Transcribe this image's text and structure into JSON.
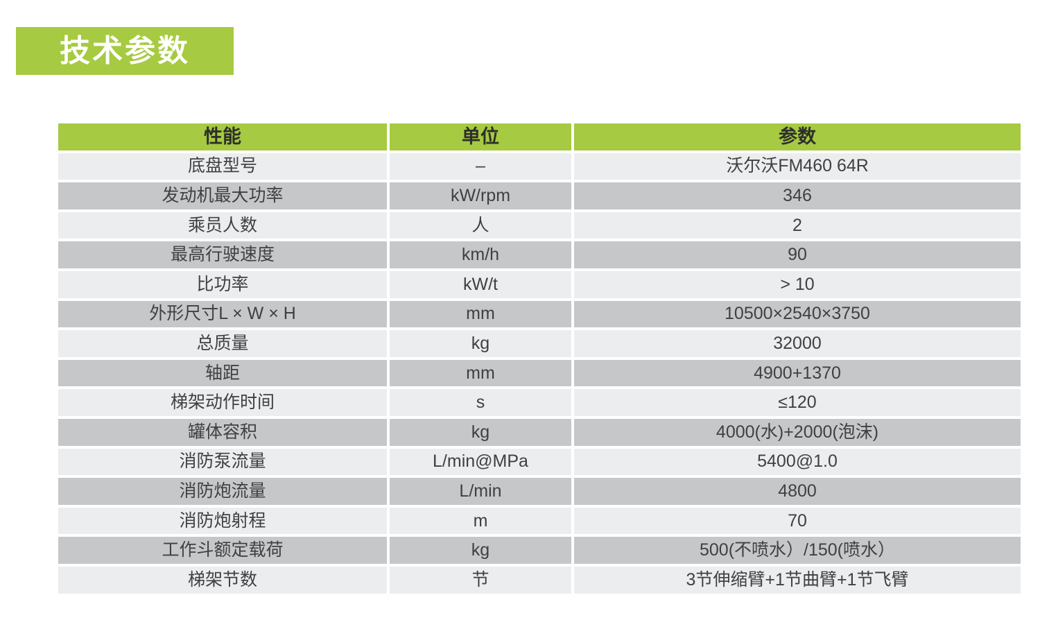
{
  "title": {
    "text": "技术参数"
  },
  "colors": {
    "green": "#a6ca41",
    "row_light": "#ecedef",
    "row_dark": "#c6c7c9",
    "text": "#3f4042",
    "title_text": "#ffffff",
    "page_bg": "#ffffff"
  },
  "table": {
    "headers": [
      "性能",
      "单位",
      "参数"
    ],
    "rows": [
      [
        "底盘型号",
        "–",
        "沃尔沃FM460 64R"
      ],
      [
        "发动机最大功率",
        "kW/rpm",
        "346"
      ],
      [
        "乘员人数",
        "人",
        "2"
      ],
      [
        "最高行驶速度",
        "km/h",
        "90"
      ],
      [
        "比功率",
        "kW/t",
        "> 10"
      ],
      [
        "外形尺寸L × W × H",
        "mm",
        "10500×2540×3750"
      ],
      [
        "总质量",
        "kg",
        "32000"
      ],
      [
        "轴距",
        "mm",
        "4900+1370"
      ],
      [
        "梯架动作时间",
        "s",
        "≤120"
      ],
      [
        "罐体容积",
        "kg",
        "4000(水)+2000(泡沫)"
      ],
      [
        "消防泵流量",
        "L/min@MPa",
        "5400@1.0"
      ],
      [
        "消防炮流量",
        "L/min",
        "4800"
      ],
      [
        "消防炮射程",
        "m",
        "70"
      ],
      [
        "工作斗额定载荷",
        "kg",
        "500(不喷水）/150(喷水）"
      ],
      [
        "梯架节数",
        "节",
        "3节伸缩臂+1节曲臂+1节飞臂"
      ]
    ]
  }
}
